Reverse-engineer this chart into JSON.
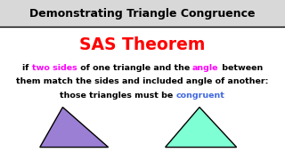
{
  "title": "Demonstrating Triangle Congruence",
  "theorem": "SAS Theorem",
  "theorem_color": "#ff0000",
  "line1_parts": [
    {
      "text": "if ",
      "color": "#000000"
    },
    {
      "text": "two sides",
      "color": "#ff00ff"
    },
    {
      "text": " of one triangle and the ",
      "color": "#000000"
    },
    {
      "text": "angle",
      "color": "#ff00ff"
    },
    {
      "text": " between",
      "color": "#000000"
    }
  ],
  "line2": "them match the sides and included angle of another:",
  "line2_color": "#000000",
  "line3_parts": [
    {
      "text": "those triangles must be ",
      "color": "#000000"
    },
    {
      "text": "congruent",
      "color": "#4169e1"
    }
  ],
  "triangle1_color": "#9b7fd4",
  "triangle1_edge": "#000000",
  "triangle2_color": "#7fffd4",
  "triangle2_edge": "#000000",
  "bg_color": "#ffffff",
  "title_bg": "#d8d8d8",
  "separator_color": "#000000",
  "title_fontsize": 9.0,
  "theorem_fontsize": 13.5,
  "body_fontsize": 6.8
}
